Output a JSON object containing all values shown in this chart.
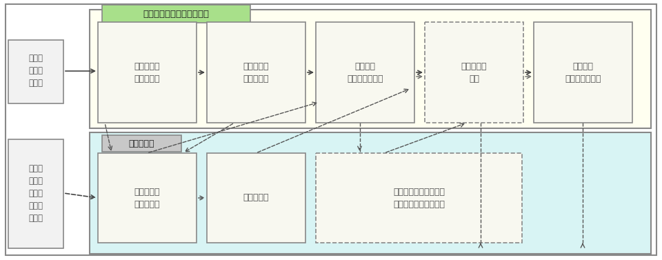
{
  "fig_width": 9.6,
  "fig_height": 3.77,
  "bg_color": "#ffffff",
  "yellow_bg": "#fffff0",
  "cyan_bg": "#d8f4f4",
  "green_label_bg": "#a8e08a",
  "gray_label_bg": "#c8c8c8",
  "box_bg": "#f8f8f0",
  "title_top": "任命権者（県、市町村等）",
  "title_bottom": "人事委員会",
  "left_label_top": "第三者\nによる\n通報等",
  "left_label_bottom": "働きか\nけを受\nけた職\n員によ\nる届出",
  "top_boxes": [
    {
      "label": "違反行為の\n疑いの把握",
      "dashed": false
    },
    {
      "label": "違反行為の\n情報の報告",
      "dashed": false
    },
    {
      "label": "調査開始\n（開始の通知）",
      "dashed": false
    },
    {
      "label": "調査経過の\n報告",
      "dashed": true
    },
    {
      "label": "調査終了\n（終了の報告）",
      "dashed": false
    }
  ],
  "bottom_boxes": [
    {
      "label": "違反行為の\n疑いの把握",
      "dashed": false
    },
    {
      "label": "調査の要求",
      "dashed": false
    },
    {
      "label": "調査経過の報告要求・\n調査経過への意見陳述",
      "dashed": true
    }
  ]
}
